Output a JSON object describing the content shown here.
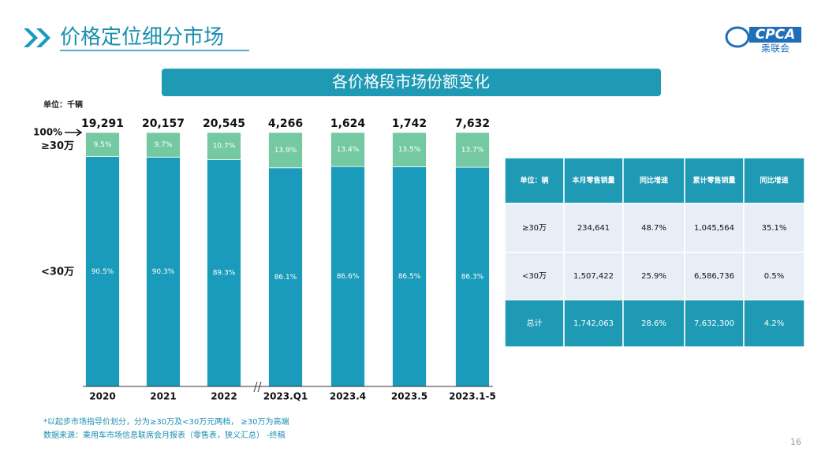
{
  "header": {
    "title": "价格定位细分市场",
    "logo": "CPCA",
    "logo_sub": "乘联会"
  },
  "chart_data": {
    "type": "stacked_bar",
    "title": "各价格段市场份额变化",
    "unit": "单位：千辆",
    "categories": [
      "2020",
      "2021",
      "2022",
      "2023.Q1",
      "2023.4",
      "2023.5",
      "2023.1-5"
    ],
    "series": [
      {
        "name": "<30万",
        "color": "#1a9bbb",
        "values": [
          90.5,
          90.3,
          89.3,
          86.1,
          86.6,
          86.5,
          86.3
        ],
        "value_labels": [
          "90.5%",
          "90.3%",
          "89.3%",
          "86.1%",
          "86.6%",
          "86.5%",
          "86.3%"
        ]
      },
      {
        "name": "≥30万",
        "color": "#74c9a2",
        "values": [
          9.5,
          9.7,
          10.7,
          13.9,
          13.4,
          13.5,
          13.7
        ],
        "value_labels": [
          "9.5%",
          "9.7%",
          "10.7%",
          "13.9%",
          "13.4%",
          "13.5%",
          "13.7%"
        ]
      }
    ],
    "totals": {
      "values": [
        19291,
        20157,
        20545,
        4266,
        1624,
        1742,
        7632
      ],
      "value_labels": [
        "19,291",
        "20,157",
        "20,545",
        "4,266",
        "1,624",
        "1,742",
        "7,632"
      ]
    },
    "ylim": [
      0,
      100
    ],
    "yticks": [
      {
        "value": 100,
        "label": "100%"
      }
    ]
  },
  "table": {
    "header": [
      "单位：辆",
      "本月零售销量",
      "同比增速",
      "累计零售销量",
      "同比增速"
    ],
    "rows": [
      [
        "≥30万",
        "234,641",
        "48.7%",
        "1,045,564",
        "35.1%"
      ],
      [
        "<30万",
        "1,507,422",
        "25.9%",
        "6,586,736",
        "0.5%"
      ],
      [
        "总计",
        "1,742,063",
        "28.6%",
        "7,632,300",
        "4.2%"
      ]
    ]
  },
  "footnotes": [
    "*以起步市场指导价划分，分为≥30万及<30万元两档， ≥30万为高端",
    "数据来源：乘用车市场信息联席会月报表（零售表，狭义汇总） -终稿"
  ],
  "page_number": "16"
}
